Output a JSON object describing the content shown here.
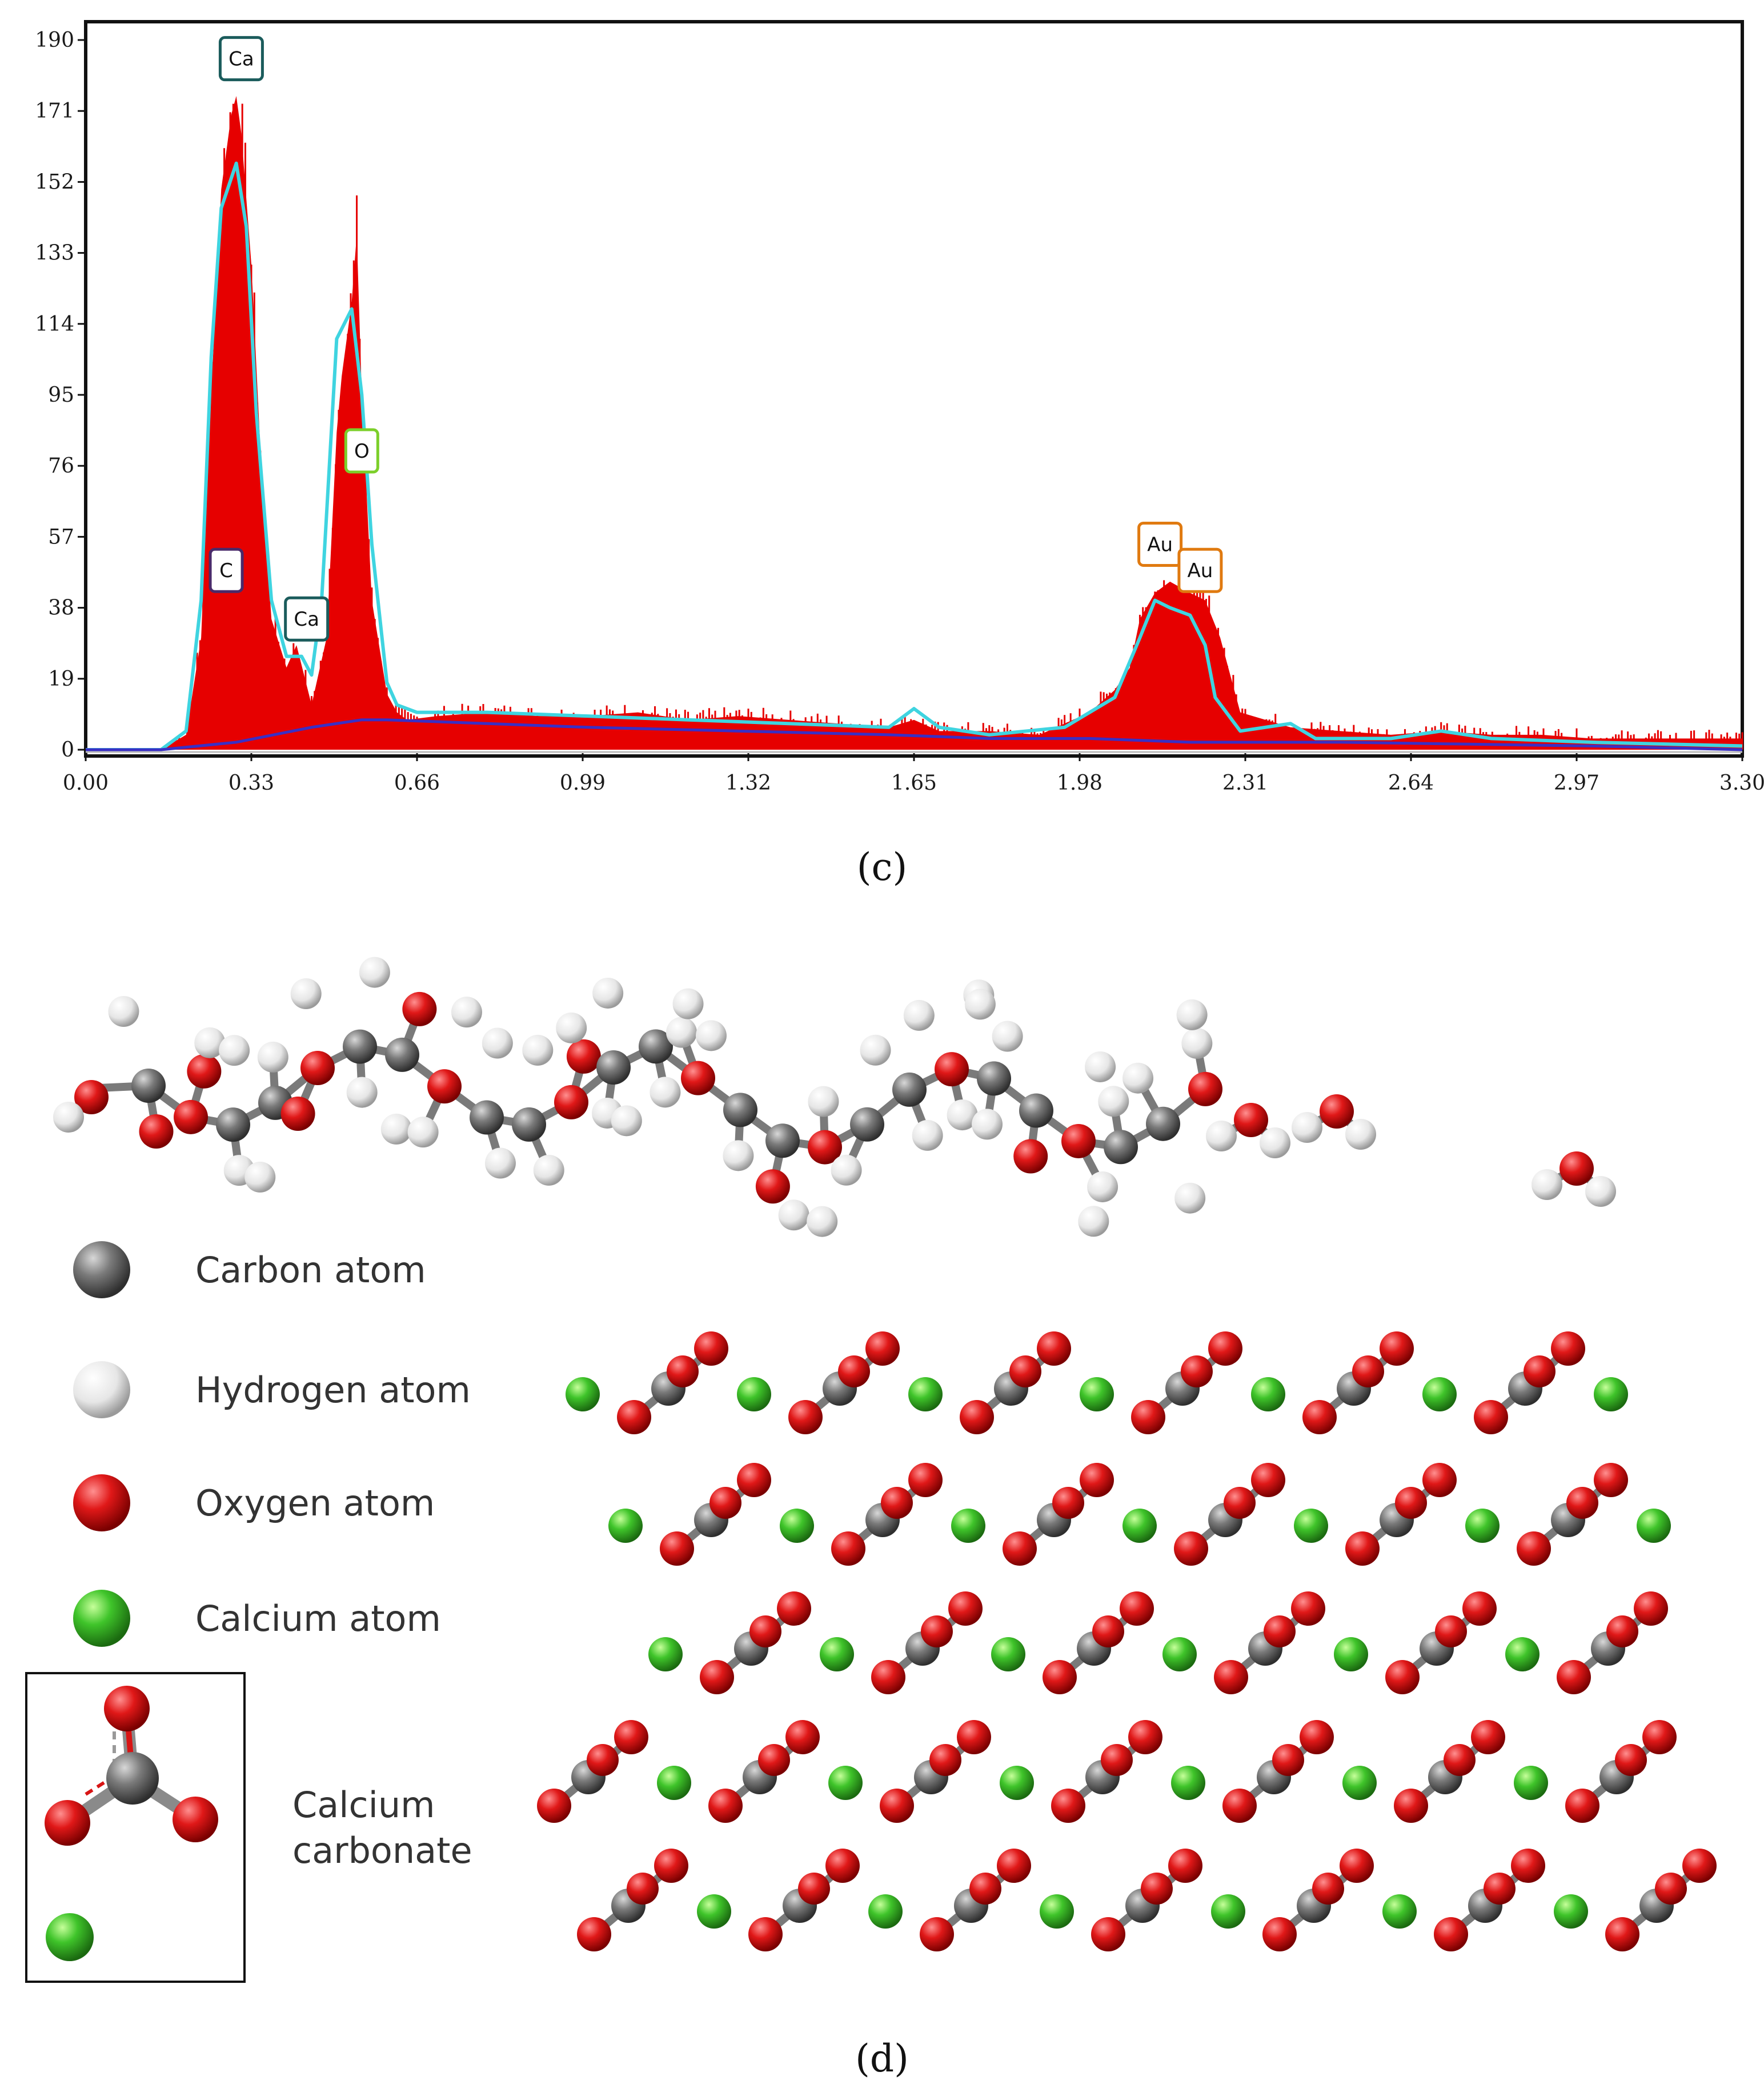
{
  "colors": {
    "spectrum_fill": "#e60000",
    "fit_line": "#3fd4e0",
    "background_line": "#3a2fc4",
    "carbon": "#6a6a6a",
    "hydrogen": "#f2f2f2",
    "oxygen": "#d81414",
    "calcium": "#3fc42a",
    "label_ca": "#1b5c5c",
    "label_c": "#4a2a6a",
    "label_o": "#7ccf2a",
    "label_au": "#e07a10"
  },
  "chart_data": {
    "type": "area",
    "title": "",
    "xlabel": "",
    "ylabel": "",
    "xlim": [
      0.0,
      3.3
    ],
    "ylim": [
      0,
      190
    ],
    "x_ticks": [
      "0.00",
      "0.33",
      "0.66",
      "0.99",
      "1.32",
      "1.65",
      "1.98",
      "2.31",
      "2.64",
      "2.97",
      "3.30"
    ],
    "y_ticks": [
      "190",
      "171",
      "152",
      "133",
      "114",
      "95",
      "76",
      "57",
      "38",
      "19",
      "0"
    ],
    "series": [
      {
        "name": "spectrum",
        "style": "filled-bars",
        "x": [
          0.0,
          0.15,
          0.2,
          0.23,
          0.25,
          0.27,
          0.29,
          0.3,
          0.31,
          0.33,
          0.35,
          0.37,
          0.4,
          0.42,
          0.45,
          0.48,
          0.5,
          0.51,
          0.53,
          0.54,
          0.55,
          0.57,
          0.6,
          0.62,
          0.64,
          0.7,
          0.8,
          0.9,
          1.0,
          1.1,
          1.2,
          1.3,
          1.4,
          1.5,
          1.6,
          1.65,
          1.7,
          1.8,
          1.9,
          2.0,
          2.05,
          2.08,
          2.1,
          2.13,
          2.16,
          2.2,
          2.23,
          2.26,
          2.3,
          2.4,
          2.5,
          2.6,
          2.7,
          2.8,
          2.9,
          3.0,
          3.1,
          3.2,
          3.3
        ],
        "y": [
          0,
          0,
          4,
          30,
          95,
          150,
          170,
          175,
          165,
          130,
          75,
          35,
          22,
          28,
          12,
          30,
          85,
          100,
          120,
          138,
          95,
          40,
          15,
          10,
          8,
          9,
          10,
          9,
          9,
          10,
          8,
          9,
          8,
          7,
          6,
          8,
          5,
          5,
          4,
          10,
          16,
          22,
          35,
          42,
          45,
          42,
          40,
          30,
          10,
          6,
          5,
          4,
          5,
          4,
          4,
          3,
          3,
          3,
          3
        ]
      },
      {
        "name": "fit",
        "style": "line",
        "x": [
          0.0,
          0.15,
          0.2,
          0.23,
          0.25,
          0.27,
          0.3,
          0.32,
          0.34,
          0.37,
          0.4,
          0.43,
          0.45,
          0.47,
          0.5,
          0.53,
          0.55,
          0.57,
          0.6,
          0.62,
          0.66,
          0.8,
          1.0,
          1.2,
          1.4,
          1.6,
          1.65,
          1.7,
          1.8,
          1.95,
          2.05,
          2.1,
          2.13,
          2.16,
          2.2,
          2.23,
          2.25,
          2.3,
          2.4,
          2.45,
          2.6,
          2.7,
          2.8,
          3.0,
          3.3
        ],
        "y": [
          0,
          0,
          5,
          40,
          105,
          145,
          157,
          140,
          90,
          40,
          25,
          25,
          20,
          40,
          110,
          118,
          95,
          55,
          18,
          12,
          10,
          10,
          9,
          8,
          7,
          6,
          11,
          6,
          4,
          6,
          14,
          30,
          40,
          38,
          36,
          28,
          14,
          5,
          7,
          3,
          3,
          5,
          3,
          2,
          1
        ]
      },
      {
        "name": "background",
        "style": "line",
        "x": [
          0.0,
          0.15,
          0.3,
          0.45,
          0.55,
          0.6,
          0.8,
          1.0,
          1.3,
          1.6,
          1.8,
          2.0,
          2.2,
          2.5,
          3.0,
          3.3
        ],
        "y": [
          0,
          0,
          2,
          6,
          8,
          8,
          7,
          6,
          5,
          4,
          3,
          3,
          2,
          2,
          1,
          0
        ]
      }
    ],
    "peak_labels": [
      {
        "label": "Ca",
        "x": 0.31,
        "y": 185,
        "color_key": "label_ca"
      },
      {
        "label": "C",
        "x": 0.28,
        "y": 48,
        "color_key": "label_c"
      },
      {
        "label": "Ca",
        "x": 0.44,
        "y": 35,
        "color_key": "label_ca"
      },
      {
        "label": "O",
        "x": 0.55,
        "y": 80,
        "color_key": "label_o"
      },
      {
        "label": "Au",
        "x": 2.14,
        "y": 55,
        "color_key": "label_au"
      },
      {
        "label": "Au",
        "x": 2.22,
        "y": 48,
        "color_key": "label_au"
      }
    ]
  },
  "captions": {
    "panel_c": "(c)",
    "panel_d": "(d)"
  },
  "legend": {
    "items": [
      {
        "label": "Carbon atom",
        "atom": "carbon"
      },
      {
        "label": "Hydrogen atom",
        "atom": "hydrogen"
      },
      {
        "label": "Oxygen atom",
        "atom": "oxygen"
      },
      {
        "label": "Calcium atom",
        "atom": "calcium"
      }
    ],
    "compound_line1": "Calcium",
    "compound_line2": "carbonate"
  }
}
